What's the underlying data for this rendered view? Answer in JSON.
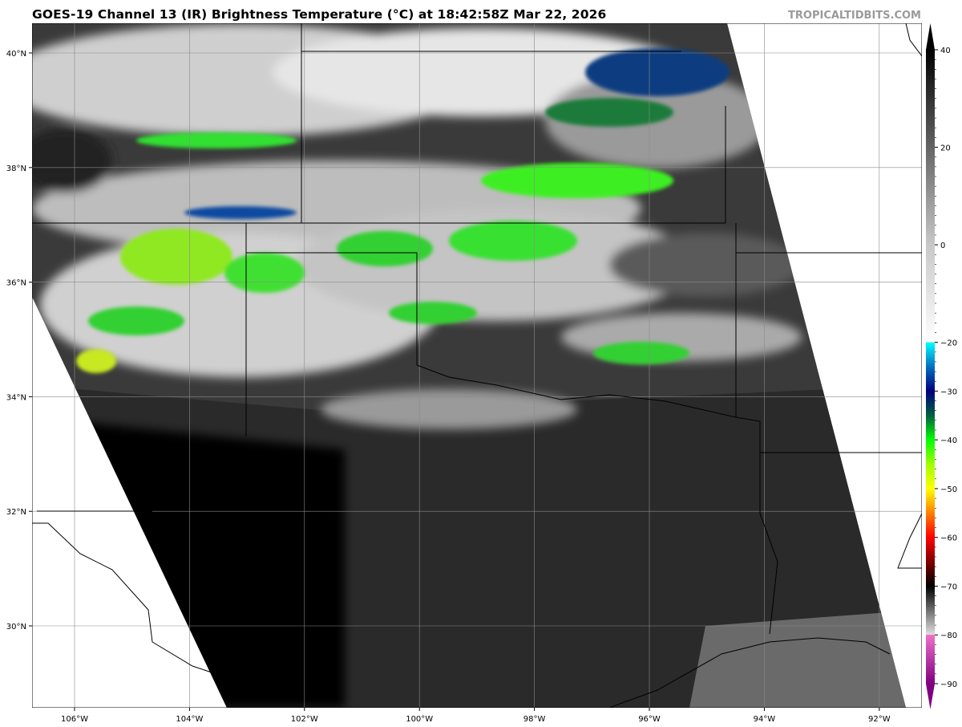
{
  "title": "GOES-19 Channel 13 (IR) Brightness Temperature (°C) at 18:42:58Z Mar 22, 2026",
  "brand": "TROPICALTIDBITS.COM",
  "map": {
    "lon_labels": [
      {
        "value": -106,
        "label": "106°W"
      },
      {
        "value": -104,
        "label": "104°W"
      },
      {
        "value": -102,
        "label": "102°W"
      },
      {
        "value": -100,
        "label": "100°W"
      },
      {
        "value": -98,
        "label": "98°W"
      },
      {
        "value": -96,
        "label": "96°W"
      },
      {
        "value": -94,
        "label": "94°W"
      },
      {
        "value": -92,
        "label": "92°W"
      }
    ],
    "lat_labels": [
      {
        "value": 40,
        "label": "40°N"
      },
      {
        "value": 38,
        "label": "38°N"
      },
      {
        "value": 36,
        "label": "36°N"
      },
      {
        "value": 34,
        "label": "34°N"
      },
      {
        "value": 32,
        "label": "32°N"
      },
      {
        "value": 30,
        "label": "30°N"
      }
    ]
  },
  "colorbar": {
    "ticks": [
      "40",
      "20",
      "0",
      "−20",
      "−30",
      "−40",
      "−50",
      "−60",
      "−70",
      "−80",
      "−90"
    ],
    "tick_values": [
      40,
      20,
      0,
      -20,
      -30,
      -40,
      -50,
      -60,
      -70,
      -80,
      -90
    ],
    "range": [
      -90,
      40
    ],
    "stops": [
      {
        "v": 40,
        "c": "#000000"
      },
      {
        "v": 0,
        "c": "#c8c8c8"
      },
      {
        "v": -20,
        "c": "#ffffff"
      },
      {
        "v": -20,
        "c": "#00ffff"
      },
      {
        "v": -25,
        "c": "#0070c0"
      },
      {
        "v": -30,
        "c": "#000080"
      },
      {
        "v": -35,
        "c": "#006040"
      },
      {
        "v": -40,
        "c": "#00ff00"
      },
      {
        "v": -45,
        "c": "#a0ff00"
      },
      {
        "v": -50,
        "c": "#ffff00"
      },
      {
        "v": -55,
        "c": "#ff8000"
      },
      {
        "v": -60,
        "c": "#ff0000"
      },
      {
        "v": -65,
        "c": "#800000"
      },
      {
        "v": -70,
        "c": "#000000"
      },
      {
        "v": -80,
        "c": "#e0e0e0"
      },
      {
        "v": -80,
        "c": "#f070c8"
      },
      {
        "v": -90,
        "c": "#800080"
      }
    ]
  }
}
